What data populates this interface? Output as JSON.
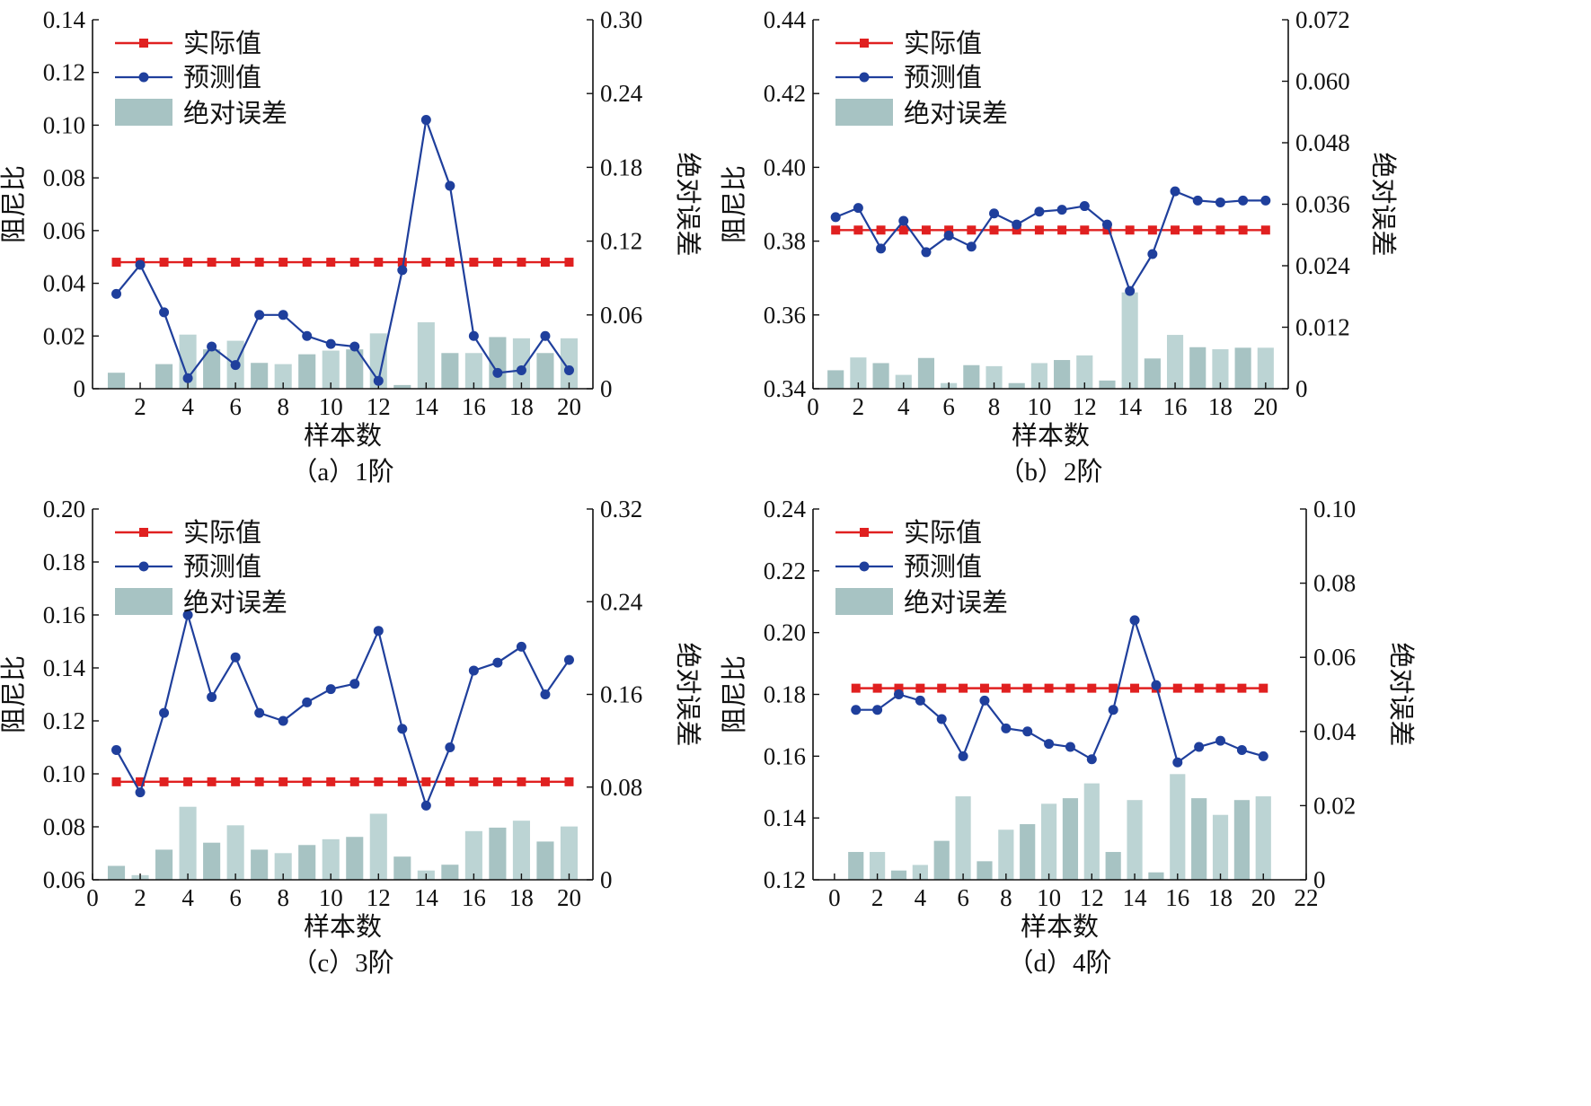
{
  "chart_data": [
    {
      "type": "bar",
      "caption": "（a）1阶",
      "xlabel": "样本数",
      "ylabel": "阻尼比",
      "y2label": "绝对误差",
      "xlim": [
        0,
        21
      ],
      "xticks": [
        2,
        4,
        6,
        8,
        10,
        12,
        14,
        16,
        18,
        20
      ],
      "ylim": [
        0,
        0.14
      ],
      "yticks": [
        "0",
        "0.02",
        "0.04",
        "0.06",
        "0.08",
        "0.10",
        "0.12",
        "0.14"
      ],
      "y2lim": [
        0,
        0.3
      ],
      "y2ticks": [
        "0",
        "0.06",
        "0.12",
        "0.18",
        "0.24",
        "0.30"
      ],
      "legend_position": "top-left",
      "x": [
        1,
        2,
        3,
        4,
        5,
        6,
        7,
        8,
        9,
        10,
        11,
        12,
        13,
        14,
        15,
        16,
        17,
        18,
        19,
        20
      ],
      "series": [
        {
          "name": "实际值",
          "kind": "line",
          "color": "#e02020",
          "marker": "square",
          "values": [
            0.048,
            0.048,
            0.048,
            0.048,
            0.048,
            0.048,
            0.048,
            0.048,
            0.048,
            0.048,
            0.048,
            0.048,
            0.048,
            0.048,
            0.048,
            0.048,
            0.048,
            0.048,
            0.048,
            0.048
          ]
        },
        {
          "name": "预测值",
          "kind": "line",
          "color": "#1f3f9c",
          "marker": "circle",
          "values": [
            0.036,
            0.047,
            0.029,
            0.004,
            0.016,
            0.009,
            0.028,
            0.028,
            0.02,
            0.017,
            0.016,
            0.003,
            0.045,
            0.102,
            0.077,
            0.02,
            0.006,
            0.007,
            0.02,
            0.007
          ]
        },
        {
          "name": "绝对误差",
          "kind": "bar",
          "axis": "right",
          "color": "#b2c9c9",
          "values": [
            0.013,
            0,
            0.02,
            0.044,
            0.032,
            0.039,
            0.021,
            0.02,
            0.028,
            0.031,
            0.032,
            0.045,
            0.003,
            0.054,
            0.029,
            0.029,
            0.042,
            0.041,
            0.029,
            0.041
          ]
        }
      ]
    },
    {
      "type": "bar",
      "caption": "（b）2阶",
      "xlabel": "样本数",
      "ylabel": "阻尼比",
      "y2label": "绝对误差",
      "xlim": [
        0,
        21
      ],
      "xticks": [
        0,
        2,
        4,
        6,
        8,
        10,
        12,
        14,
        16,
        18,
        20
      ],
      "ylim": [
        0.34,
        0.44
      ],
      "yticks": [
        "0.34",
        "0.36",
        "0.38",
        "0.40",
        "0.42",
        "0.44"
      ],
      "y2lim": [
        0,
        0.072
      ],
      "y2ticks": [
        "0",
        "0.012",
        "0.024",
        "0.036",
        "0.048",
        "0.060",
        "0.072"
      ],
      "legend_position": "top-left",
      "x": [
        1,
        2,
        3,
        4,
        5,
        6,
        7,
        8,
        9,
        10,
        11,
        12,
        13,
        14,
        15,
        16,
        17,
        18,
        19,
        20
      ],
      "series": [
        {
          "name": "实际值",
          "kind": "line",
          "color": "#e02020",
          "marker": "square",
          "values": [
            0.383,
            0.383,
            0.383,
            0.383,
            0.383,
            0.383,
            0.383,
            0.383,
            0.383,
            0.383,
            0.383,
            0.383,
            0.383,
            0.383,
            0.383,
            0.383,
            0.383,
            0.383,
            0.383,
            0.383
          ]
        },
        {
          "name": "预测值",
          "kind": "line",
          "color": "#1f3f9c",
          "marker": "circle",
          "values": [
            0.3865,
            0.389,
            0.378,
            0.3855,
            0.377,
            0.3815,
            0.3785,
            0.3875,
            0.3845,
            0.388,
            0.3885,
            0.3895,
            0.3845,
            0.3665,
            0.3765,
            0.3935,
            0.391,
            0.3905,
            0.391,
            0.391
          ]
        },
        {
          "name": "绝对误差",
          "kind": "bar",
          "axis": "right",
          "color": "#b2c9c9",
          "values": [
            0.0036,
            0.0061,
            0.005,
            0.0027,
            0.006,
            0.0011,
            0.0046,
            0.0044,
            0.0011,
            0.005,
            0.0056,
            0.0065,
            0.0016,
            0.0188,
            0.0059,
            0.0105,
            0.0081,
            0.0077,
            0.008,
            0.008
          ]
        }
      ]
    },
    {
      "type": "bar",
      "caption": "（c）3阶",
      "xlabel": "样本数",
      "ylabel": "阻尼比",
      "y2label": "绝对误差",
      "xlim": [
        0,
        21
      ],
      "xticks": [
        0,
        2,
        4,
        6,
        8,
        10,
        12,
        14,
        16,
        18,
        20
      ],
      "ylim": [
        0.06,
        0.2
      ],
      "yticks": [
        "0.06",
        "0.08",
        "0.10",
        "0.12",
        "0.14",
        "0.16",
        "0.18",
        "0.20"
      ],
      "y2lim": [
        0,
        0.32
      ],
      "y2ticks": [
        "0",
        "0.08",
        "0.16",
        "0.24",
        "0.32"
      ],
      "legend_position": "top-left",
      "x": [
        1,
        2,
        3,
        4,
        5,
        6,
        7,
        8,
        9,
        10,
        11,
        12,
        13,
        14,
        15,
        16,
        17,
        18,
        19,
        20
      ],
      "series": [
        {
          "name": "实际值",
          "kind": "line",
          "color": "#e02020",
          "marker": "square",
          "values": [
            0.097,
            0.097,
            0.097,
            0.097,
            0.097,
            0.097,
            0.097,
            0.097,
            0.097,
            0.097,
            0.097,
            0.097,
            0.097,
            0.097,
            0.097,
            0.097,
            0.097,
            0.097,
            0.097,
            0.097
          ]
        },
        {
          "name": "预测值",
          "kind": "line",
          "color": "#1f3f9c",
          "marker": "circle",
          "values": [
            0.109,
            0.093,
            0.123,
            0.16,
            0.129,
            0.144,
            0.123,
            0.12,
            0.127,
            0.132,
            0.134,
            0.154,
            0.117,
            0.088,
            0.11,
            0.139,
            0.142,
            0.148,
            0.13,
            0.143
          ]
        },
        {
          "name": "绝对误差",
          "kind": "bar",
          "axis": "right",
          "color": "#b2c9c9",
          "values": [
            0.012,
            0.004,
            0.026,
            0.063,
            0.032,
            0.047,
            0.026,
            0.023,
            0.03,
            0.035,
            0.037,
            0.057,
            0.02,
            0.008,
            0.013,
            0.042,
            0.045,
            0.051,
            0.033,
            0.046
          ]
        }
      ]
    },
    {
      "type": "bar",
      "caption": "（d）4阶",
      "xlabel": "样本数",
      "ylabel": "阻尼比",
      "y2label": "绝对误差",
      "xlim": [
        -1,
        22
      ],
      "xticks": [
        0,
        2,
        4,
        6,
        8,
        10,
        12,
        14,
        16,
        18,
        20,
        22
      ],
      "ylim": [
        0.12,
        0.24
      ],
      "yticks": [
        "0.12",
        "0.14",
        "0.16",
        "0.18",
        "0.20",
        "0.22",
        "0.24"
      ],
      "y2lim": [
        0,
        0.1
      ],
      "y2ticks": [
        "0",
        "0.02",
        "0.04",
        "0.06",
        "0.08",
        "0.10"
      ],
      "legend_position": "top-left",
      "x": [
        1,
        2,
        3,
        4,
        5,
        6,
        7,
        8,
        9,
        10,
        11,
        12,
        13,
        14,
        15,
        16,
        17,
        18,
        19,
        20
      ],
      "series": [
        {
          "name": "实际值",
          "kind": "line",
          "color": "#e02020",
          "marker": "square",
          "values": [
            0.182,
            0.182,
            0.182,
            0.182,
            0.182,
            0.182,
            0.182,
            0.182,
            0.182,
            0.182,
            0.182,
            0.182,
            0.182,
            0.182,
            0.182,
            0.182,
            0.182,
            0.182,
            0.182,
            0.182
          ]
        },
        {
          "name": "预测值",
          "kind": "line",
          "color": "#1f3f9c",
          "marker": "circle",
          "values": [
            0.175,
            0.175,
            0.18,
            0.178,
            0.172,
            0.16,
            0.178,
            0.169,
            0.168,
            0.164,
            0.163,
            0.159,
            0.175,
            0.204,
            0.183,
            0.158,
            0.163,
            0.165,
            0.162,
            0.16
          ]
        },
        {
          "name": "绝对误差",
          "kind": "bar",
          "axis": "right",
          "color": "#b2c9c9",
          "values": [
            0.0075,
            0.0075,
            0.0025,
            0.004,
            0.0105,
            0.0225,
            0.005,
            0.0135,
            0.015,
            0.0205,
            0.022,
            0.026,
            0.0075,
            0.0215,
            0.002,
            0.0285,
            0.022,
            0.0175,
            0.0215,
            0.0225
          ]
        }
      ]
    }
  ]
}
